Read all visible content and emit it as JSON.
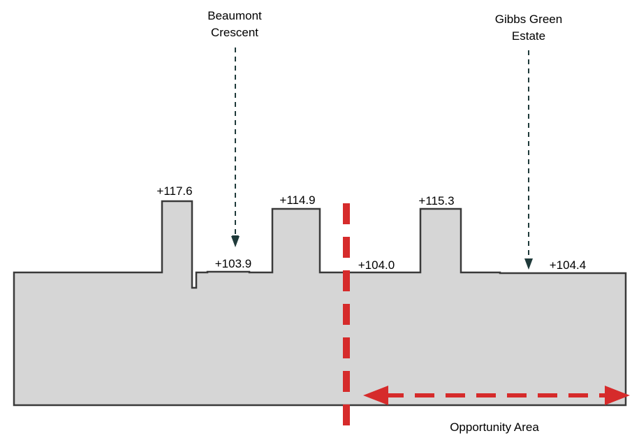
{
  "labels": {
    "beaumont_line1": "Beaumont",
    "beaumont_line2": "Crescent",
    "gibbs_line1": "Gibbs Green",
    "gibbs_line2": "Estate",
    "opportunity": "Opportunity Area"
  },
  "heights": {
    "h1": "+117.6",
    "h2": "+103.9",
    "h3": "+114.9",
    "h4": "+104.0",
    "h5": "+115.3",
    "h6": "+104.4"
  },
  "colors": {
    "ground_fill": "#d6d6d6",
    "outline": "#3a3a3a",
    "accent_red": "#d62b2b",
    "pointer": "#1f3a3a"
  }
}
